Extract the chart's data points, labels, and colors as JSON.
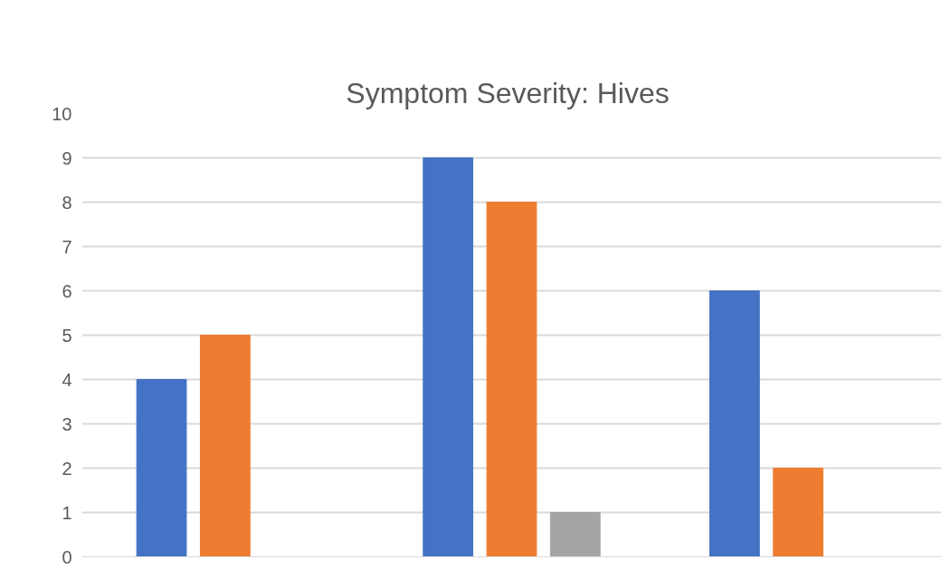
{
  "chart_data": {
    "type": "bar",
    "title": "Symptom Severity:  Hives",
    "categories": [
      null,
      null,
      null
    ],
    "series": [
      {
        "color": "#4472c4",
        "values": [
          4,
          9,
          6
        ]
      },
      {
        "color": "#ed7d31",
        "values": [
          5,
          8,
          2
        ]
      },
      {
        "color": "#a5a5a5",
        "values": [
          null,
          1,
          null
        ]
      }
    ],
    "ylim": [
      0,
      10
    ],
    "yticks": [
      0,
      1,
      2,
      3,
      4,
      5,
      6,
      7,
      8,
      9,
      10
    ],
    "grid": "y",
    "tick_labels": "y"
  }
}
